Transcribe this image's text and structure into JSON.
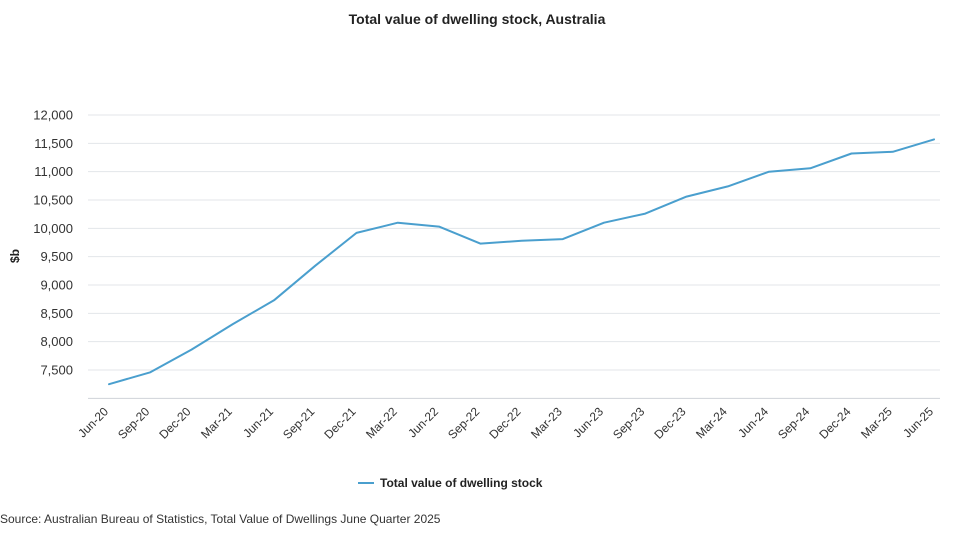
{
  "chart_data": {
    "type": "line",
    "title": "Total value of dwelling stock, Australia",
    "xlabel": "",
    "ylabel": "$b",
    "categories": [
      "Jun-20",
      "Sep-20",
      "Dec-20",
      "Mar-21",
      "Jun-21",
      "Sep-21",
      "Dec-21",
      "Mar-22",
      "Jun-22",
      "Sep-22",
      "Dec-22",
      "Mar-23",
      "Jun-23",
      "Sep-23",
      "Dec-23",
      "Mar-24",
      "Jun-24",
      "Sep-24",
      "Dec-24",
      "Mar-25",
      "Jun-25"
    ],
    "series": [
      {
        "name": "Total value of dwelling stock",
        "color": "#4a9fce",
        "values": [
          7250,
          7460,
          7860,
          8310,
          8730,
          9340,
          9920,
          10100,
          10030,
          9730,
          9780,
          9810,
          10100,
          10260,
          10560,
          10740,
          11000,
          11060,
          11320,
          11350,
          11570
        ]
      }
    ],
    "ylim": [
      7000,
      12000
    ],
    "yticks": [
      7500,
      8000,
      8500,
      9000,
      9500,
      10000,
      10500,
      11000,
      11500,
      12000
    ],
    "ytick_labels": [
      "7,500",
      "8,000",
      "8,500",
      "9,000",
      "9,500",
      "10,000",
      "10,500",
      "11,000",
      "11,500",
      "12,000"
    ],
    "grid": true,
    "legend_position": "bottom-center",
    "source": "Source: Australian Bureau of Statistics, Total Value of Dwellings June Quarter 2025"
  }
}
